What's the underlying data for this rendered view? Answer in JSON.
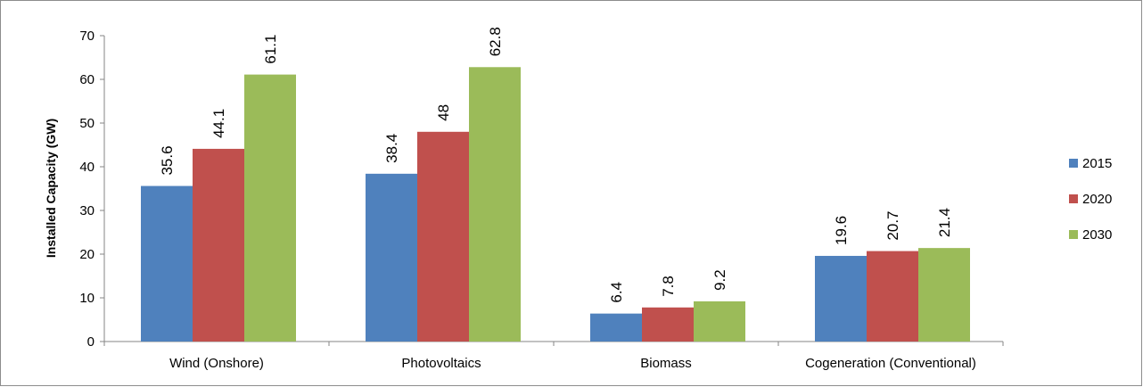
{
  "chart_data": {
    "type": "bar",
    "categories": [
      "Wind (Onshore)",
      "Photovoltaics",
      "Biomass",
      "Cogeneration (Conventional)"
    ],
    "series": [
      {
        "name": "2015",
        "color": "#4f81bd",
        "values": [
          35.6,
          38.4,
          6.4,
          19.6
        ],
        "labels": [
          "35.6",
          "38.4",
          "6.4",
          "19.6"
        ]
      },
      {
        "name": "2020",
        "color": "#c0504d",
        "values": [
          44.1,
          48,
          7.8,
          20.7
        ],
        "labels": [
          "44.1",
          "48",
          "7.8",
          "20.7"
        ]
      },
      {
        "name": "2030",
        "color": "#9bbb59",
        "values": [
          61.1,
          62.8,
          9.2,
          21.4
        ],
        "labels": [
          "61.1",
          "62.8",
          "9.2",
          "21.4"
        ]
      }
    ],
    "ylabel": "Installed Capacity (GW)",
    "xlabel": "",
    "ylim": [
      0,
      70
    ],
    "yticks": [
      "0",
      "10",
      "20",
      "30",
      "40",
      "50",
      "60",
      "70"
    ],
    "grid": false,
    "legend_position": "right"
  }
}
